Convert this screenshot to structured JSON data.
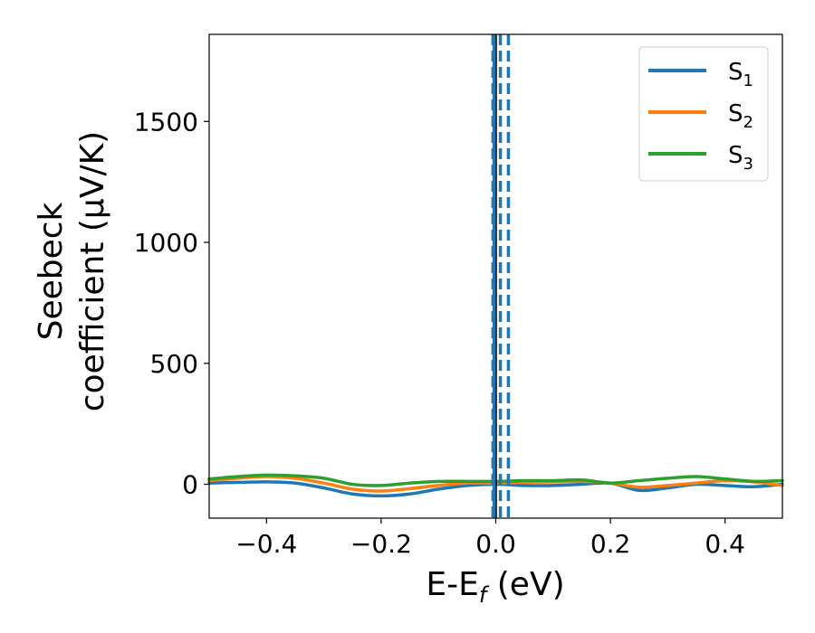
{
  "chart_data": {
    "type": "line",
    "xlabel": "E-E$_f$ (eV)",
    "ylabel_line1": "Seebeck",
    "ylabel_line2": "coefficient  (μV/K)",
    "xlim": [
      -0.5,
      0.5
    ],
    "ylim": [
      -140,
      1860
    ],
    "xticks": [
      -0.4,
      -0.2,
      0.0,
      0.2,
      0.4
    ],
    "xtick_labels": [
      "−0.4",
      "−0.2",
      "0.0",
      "0.2",
      "0.4"
    ],
    "yticks": [
      0,
      500,
      1000,
      1500
    ],
    "ytick_labels": [
      "0",
      "500",
      "1000",
      "1500"
    ],
    "grid": false,
    "legend_position": "top-right",
    "x": [
      -0.5,
      -0.45,
      -0.4,
      -0.35,
      -0.3,
      -0.25,
      -0.2,
      -0.15,
      -0.1,
      -0.05,
      0.0,
      0.05,
      0.1,
      0.15,
      0.2,
      0.25,
      0.3,
      0.35,
      0.4,
      0.45,
      0.5
    ],
    "series": [
      {
        "name": "S1",
        "label_main": "S",
        "label_sub": "1",
        "color": "#1f77b4",
        "values": [
          5,
          8,
          10,
          5,
          -15,
          -40,
          -48,
          -40,
          -20,
          -5,
          0,
          -5,
          -5,
          0,
          5,
          -25,
          -15,
          0,
          -5,
          -10,
          0
        ]
      },
      {
        "name": "S2",
        "label_main": "S",
        "label_sub": "2",
        "color": "#ff7f0e",
        "values": [
          15,
          25,
          32,
          25,
          5,
          -20,
          -28,
          -18,
          -5,
          5,
          5,
          8,
          10,
          12,
          5,
          -12,
          -5,
          5,
          15,
          10,
          -5
        ]
      },
      {
        "name": "S3",
        "label_main": "S",
        "label_sub": "3",
        "color": "#2ca02c",
        "values": [
          22,
          32,
          38,
          35,
          25,
          0,
          -5,
          5,
          12,
          12,
          12,
          15,
          15,
          18,
          5,
          15,
          25,
          32,
          22,
          12,
          15
        ]
      }
    ],
    "vlines": [
      {
        "x": 0.0,
        "color": "#000000",
        "style": "solid"
      },
      {
        "x": -0.003,
        "color": "#1f77b4",
        "style": "solid"
      },
      {
        "x": -0.005,
        "color": "#1f77b4",
        "style": "dashed"
      },
      {
        "x": 0.008,
        "color": "#1f77b4",
        "style": "dashed"
      },
      {
        "x": 0.022,
        "color": "#1f77b4",
        "style": "dashed"
      }
    ]
  }
}
